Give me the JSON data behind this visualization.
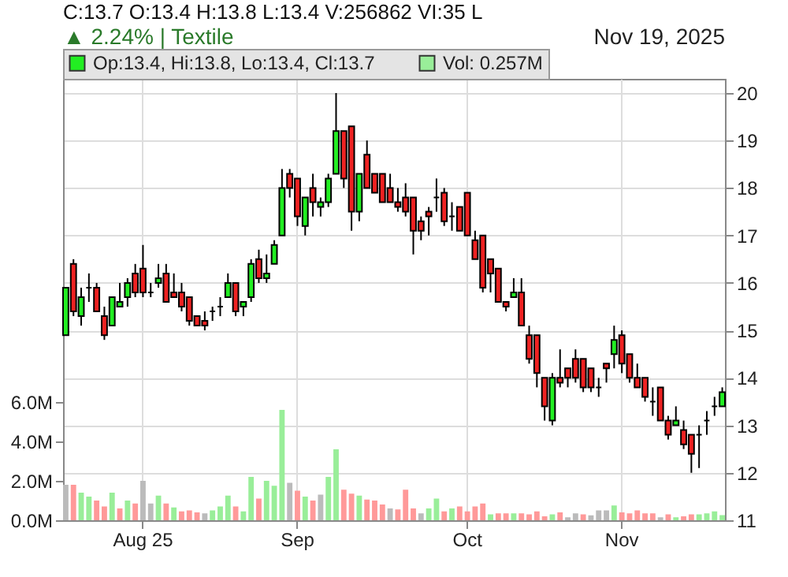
{
  "chart_data": {
    "type": "candlestick",
    "title": "C:13.7  O:13.4  H:13.8  L:13.4  V:256862  VI:35 L",
    "subtitle": "▲ 2.24% | Textile",
    "annotations": [
      "Nov 19, 2025"
    ],
    "categories": [
      null,
      null,
      null,
      null,
      null,
      null,
      null,
      null,
      null,
      null,
      "Aug 25",
      null,
      null,
      null,
      null,
      null,
      null,
      null,
      null,
      null,
      null,
      null,
      null,
      null,
      null,
      null,
      null,
      null,
      null,
      null,
      "Sep",
      null,
      null,
      null,
      null,
      null,
      null,
      null,
      null,
      null,
      null,
      null,
      null,
      null,
      null,
      null,
      null,
      null,
      null,
      null,
      null,
      null,
      "Oct",
      null,
      null,
      null,
      null,
      null,
      null,
      null,
      null,
      null,
      null,
      null,
      null,
      null,
      null,
      null,
      null,
      null,
      null,
      null,
      "Nov",
      null,
      null,
      null,
      null,
      null,
      null,
      null,
      null,
      null,
      null,
      null,
      null,
      null
    ],
    "series": [
      {
        "name": "Op:13.4, Hi:13.8, Lo:13.4, Cl:13.7",
        "color": "#22ee22",
        "ohlc": [
          [
            14.9,
            15.9,
            14.9,
            15.9
          ],
          [
            16.4,
            16.5,
            15.3,
            15.4
          ],
          [
            15.3,
            15.9,
            15.1,
            15.7
          ],
          [
            15.9,
            16.2,
            15.6,
            15.9
          ],
          [
            15.9,
            16.0,
            15.4,
            15.4
          ],
          [
            15.3,
            15.5,
            14.8,
            14.9
          ],
          [
            15.1,
            15.7,
            15.1,
            15.7
          ],
          [
            15.5,
            16.0,
            15.5,
            15.6
          ],
          [
            15.7,
            16.1,
            15.5,
            16.0
          ],
          [
            16.2,
            16.4,
            15.7,
            15.8
          ],
          [
            16.3,
            16.8,
            15.7,
            15.8
          ],
          [
            15.8,
            16.0,
            15.7,
            15.8
          ],
          [
            16.0,
            16.4,
            15.9,
            16.1
          ],
          [
            16.2,
            16.4,
            15.6,
            15.6
          ],
          [
            15.8,
            16.2,
            15.7,
            15.7
          ],
          [
            15.8,
            16.0,
            15.4,
            15.5
          ],
          [
            15.7,
            15.7,
            15.1,
            15.2
          ],
          [
            15.3,
            15.3,
            15.1,
            15.1
          ],
          [
            15.2,
            15.4,
            15.0,
            15.1
          ],
          [
            15.4,
            15.5,
            15.2,
            15.4
          ],
          [
            15.5,
            15.7,
            15.3,
            15.5
          ],
          [
            15.7,
            16.2,
            15.7,
            16.0
          ],
          [
            16.0,
            16.0,
            15.3,
            15.4
          ],
          [
            15.5,
            15.6,
            15.3,
            15.6
          ],
          [
            15.7,
            16.5,
            15.6,
            16.4
          ],
          [
            16.5,
            16.7,
            16.0,
            16.1
          ],
          [
            16.1,
            16.6,
            16.0,
            16.2
          ],
          [
            16.4,
            16.9,
            16.4,
            16.8
          ],
          [
            17.0,
            18.4,
            17.0,
            18.0
          ],
          [
            18.3,
            18.4,
            17.8,
            18.0
          ],
          [
            18.2,
            18.2,
            17.2,
            17.4
          ],
          [
            17.2,
            17.8,
            17.0,
            17.8
          ],
          [
            18.0,
            18.3,
            17.4,
            17.7
          ],
          [
            17.6,
            17.8,
            17.4,
            17.7
          ],
          [
            17.7,
            18.3,
            17.6,
            18.2
          ],
          [
            18.3,
            20.0,
            18.3,
            19.2
          ],
          [
            19.2,
            19.2,
            18.0,
            18.2
          ],
          [
            19.3,
            19.3,
            17.1,
            17.5
          ],
          [
            17.5,
            18.3,
            17.3,
            18.3
          ],
          [
            18.7,
            19.0,
            18.0,
            18.0
          ],
          [
            18.3,
            18.3,
            17.9,
            17.9
          ],
          [
            18.3,
            18.3,
            17.7,
            17.7
          ],
          [
            18.0,
            18.3,
            17.7,
            17.7
          ],
          [
            17.7,
            18.0,
            17.5,
            17.6
          ],
          [
            17.8,
            18.1,
            17.4,
            17.5
          ],
          [
            17.8,
            17.8,
            16.6,
            17.1
          ],
          [
            17.3,
            17.4,
            16.9,
            17.1
          ],
          [
            17.5,
            17.6,
            17.0,
            17.4
          ],
          [
            17.8,
            18.2,
            17.5,
            17.8
          ],
          [
            17.9,
            18.0,
            17.2,
            17.3
          ],
          [
            17.4,
            17.7,
            17.1,
            17.4
          ],
          [
            17.6,
            17.6,
            17.1,
            17.1
          ],
          [
            17.9,
            17.9,
            17.0,
            17.0
          ],
          [
            16.9,
            17.1,
            16.5,
            16.5
          ],
          [
            17.0,
            17.0,
            15.8,
            15.9
          ],
          [
            16.5,
            16.5,
            15.8,
            16.2
          ],
          [
            16.3,
            16.3,
            15.6,
            15.6
          ],
          [
            15.6,
            15.6,
            15.4,
            15.5
          ],
          [
            15.7,
            16.1,
            15.7,
            15.8
          ],
          [
            15.8,
            16.1,
            15.1,
            15.1
          ],
          [
            14.9,
            15.1,
            14.3,
            14.4
          ],
          [
            14.9,
            14.9,
            13.8,
            14.1
          ],
          [
            14.0,
            14.0,
            13.1,
            13.4
          ],
          [
            13.1,
            14.1,
            13.0,
            14.0
          ],
          [
            14.0,
            14.6,
            13.8,
            13.9
          ],
          [
            14.2,
            14.2,
            13.8,
            14.0
          ],
          [
            14.4,
            14.6,
            13.9,
            14.0
          ],
          [
            14.4,
            14.4,
            13.7,
            13.8
          ],
          [
            14.2,
            14.2,
            13.7,
            13.8
          ],
          [
            13.8,
            14.0,
            13.6,
            13.8
          ],
          [
            14.3,
            14.3,
            13.9,
            14.2
          ],
          [
            14.5,
            15.1,
            14.2,
            14.8
          ],
          [
            14.9,
            15.0,
            14.1,
            14.3
          ],
          [
            14.5,
            14.5,
            13.9,
            14.0
          ],
          [
            14.0,
            14.3,
            13.8,
            13.8
          ],
          [
            14.0,
            14.0,
            13.5,
            13.6
          ],
          [
            13.5,
            13.8,
            13.2,
            13.5
          ],
          [
            13.8,
            13.8,
            13.1,
            13.1
          ],
          [
            13.1,
            13.2,
            12.7,
            12.8
          ],
          [
            13.0,
            13.4,
            13.0,
            13.1
          ],
          [
            12.9,
            13.1,
            12.5,
            12.6
          ],
          [
            12.8,
            12.8,
            12.0,
            12.4
          ],
          [
            12.8,
            13.0,
            12.1,
            12.8
          ],
          [
            13.1,
            13.3,
            12.8,
            13.1
          ],
          [
            13.4,
            13.6,
            13.2,
            13.4
          ],
          [
            13.4,
            13.8,
            13.4,
            13.7
          ]
        ],
        "colors": [
          "#22ee22",
          "#ee2222",
          "#22ee22",
          "#000000",
          "#ee2222",
          "#ee2222",
          "#22ee22",
          "#22ee22",
          "#22ee22",
          "#ee2222",
          "#ee2222",
          "#000000",
          "#22ee22",
          "#ee2222",
          "#ee2222",
          "#ee2222",
          "#ee2222",
          "#ee2222",
          "#ee2222",
          "#000000",
          "#000000",
          "#22ee22",
          "#ee2222",
          "#22ee22",
          "#22ee22",
          "#ee2222",
          "#22ee22",
          "#22ee22",
          "#22ee22",
          "#ee2222",
          "#ee2222",
          "#22ee22",
          "#ee2222",
          "#22ee22",
          "#22ee22",
          "#22ee22",
          "#ee2222",
          "#ee2222",
          "#22ee22",
          "#ee2222",
          "#ee2222",
          "#ee2222",
          "#ee2222",
          "#ee2222",
          "#ee2222",
          "#ee2222",
          "#ee2222",
          "#ee2222",
          "#000000",
          "#ee2222",
          "#000000",
          "#ee2222",
          "#ee2222",
          "#ee2222",
          "#ee2222",
          "#ee2222",
          "#ee2222",
          "#ee2222",
          "#22ee22",
          "#ee2222",
          "#ee2222",
          "#ee2222",
          "#ee2222",
          "#22ee22",
          "#ee2222",
          "#ee2222",
          "#ee2222",
          "#ee2222",
          "#ee2222",
          "#000000",
          "#ee2222",
          "#22ee22",
          "#ee2222",
          "#ee2222",
          "#ee2222",
          "#ee2222",
          "#000000",
          "#ee2222",
          "#ee2222",
          "#22ee22",
          "#ee2222",
          "#ee2222",
          "#000000",
          "#000000",
          "#000000",
          "#22ee22"
        ]
      },
      {
        "name": "Vol: 0.257M",
        "color": "#99ee99",
        "type": "bar",
        "axis": "y2",
        "values": [
          1.8,
          1.8,
          1.4,
          1.2,
          1.0,
          0.7,
          1.4,
          0.6,
          1.0,
          0.85,
          2.0,
          0.85,
          1.25,
          0.85,
          0.65,
          0.45,
          0.5,
          0.4,
          0.35,
          0.5,
          0.7,
          1.25,
          0.7,
          0.45,
          2.2,
          1.1,
          2.0,
          1.75,
          5.6,
          1.9,
          1.5,
          1.2,
          1.0,
          1.3,
          2.2,
          3.6,
          1.55,
          1.35,
          1.25,
          1.05,
          1.0,
          0.8,
          0.6,
          0.55,
          1.55,
          0.6,
          0.35,
          0.6,
          1.1,
          0.45,
          0.6,
          0.7,
          0.45,
          0.7,
          0.85,
          0.3,
          0.35,
          0.35,
          0.35,
          0.35,
          0.3,
          0.45,
          0.2,
          0.3,
          0.4,
          0.15,
          0.35,
          0.3,
          0.25,
          0.5,
          0.5,
          0.75,
          0.4,
          0.35,
          0.5,
          0.35,
          0.35,
          0.15,
          0.3,
          0.15,
          0.2,
          0.3,
          0.3,
          0.35,
          0.45,
          0.26
        ],
        "colors": [
          "#bbbbbb",
          "#ff9999",
          "#99ee99",
          "#99ee99",
          "#ff9999",
          "#ff9999",
          "#99ee99",
          "#ff9999",
          "#99ee99",
          "#ff9999",
          "#bbbbbb",
          "#bbbbbb",
          "#99ee99",
          "#ff9999",
          "#99ee99",
          "#ff9999",
          "#ff9999",
          "#ff9999",
          "#bbbbbb",
          "#99ee99",
          "#99ee99",
          "#99ee99",
          "#ff9999",
          "#99ee99",
          "#99ee99",
          "#ff9999",
          "#99ee99",
          "#99ee99",
          "#99ee99",
          "#bbbbbb",
          "#ff9999",
          "#99ee99",
          "#ff9999",
          "#bbbbbb",
          "#99ee99",
          "#99ee99",
          "#ff9999",
          "#ff9999",
          "#99ee99",
          "#ff9999",
          "#ff9999",
          "#ff9999",
          "#bbbbbb",
          "#ff9999",
          "#ff9999",
          "#ff9999",
          "#bbbbbb",
          "#99ee99",
          "#99ee99",
          "#ff9999",
          "#99ee99",
          "#ff9999",
          "#ff9999",
          "#ff9999",
          "#ff9999",
          "#99ee99",
          "#ff9999",
          "#ff9999",
          "#99ee99",
          "#ff9999",
          "#ff9999",
          "#ff9999",
          "#ff9999",
          "#99ee99",
          "#ff9999",
          "#bbbbbb",
          "#bbbbbb",
          "#ff9999",
          "#bbbbbb",
          "#bbbbbb",
          "#bbbbbb",
          "#99ee99",
          "#ff9999",
          "#ff9999",
          "#ff9999",
          "#ff9999",
          "#ff9999",
          "#bbbbbb",
          "#ff9999",
          "#99ee99",
          "#ff9999",
          "#ff9999",
          "#99ee99",
          "#99ee99",
          "#99ee99",
          "#99ee99"
        ]
      }
    ],
    "ylim": [
      11,
      20.3
    ],
    "yticks": [
      11,
      12,
      13,
      14,
      15,
      16,
      17,
      18,
      19,
      20
    ],
    "y2lim": [
      0,
      22.4
    ],
    "y2ticks": [
      {
        "value": 0,
        "label": "0.0M"
      },
      {
        "value": 2,
        "label": "2.0M"
      },
      {
        "value": 4,
        "label": "4.0M"
      },
      {
        "value": 6,
        "label": "6.0M"
      }
    ],
    "grid": true,
    "legend": "top left"
  }
}
